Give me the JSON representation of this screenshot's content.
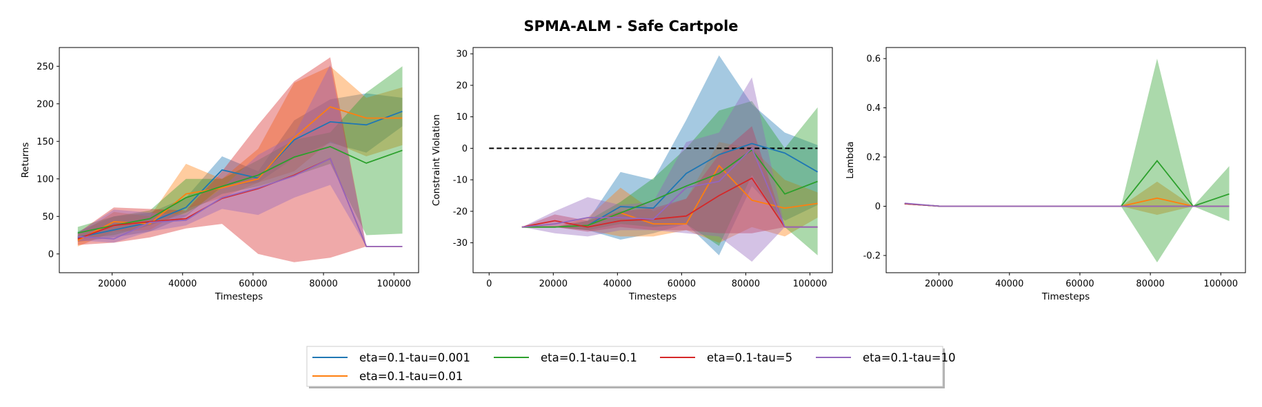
{
  "title": "SPMA-ALM - Safe Cartpole",
  "colors": {
    "eta=0.1-tau=0.001": "#1f77b4",
    "eta=0.1-tau=0.01": "#ff7f0e",
    "eta=0.1-tau=0.1": "#2ca02c",
    "eta=0.1-tau=5": "#d62728",
    "eta=0.1-tau=10": "#9467bd"
  },
  "legend": {
    "entries": [
      "eta=0.1-tau=0.001",
      "eta=0.1-tau=0.1",
      "eta=0.1-tau=5",
      "eta=0.1-tau=10",
      "eta=0.1-tau=0.01"
    ]
  },
  "chart_data": [
    {
      "type": "line",
      "xlabel": "Timesteps",
      "ylabel": "Returns",
      "xlim": [
        5000,
        107000
      ],
      "ylim": [
        -25,
        275
      ],
      "xticks": [
        20000,
        40000,
        60000,
        80000,
        100000
      ],
      "yticks": [
        0,
        50,
        100,
        150,
        200,
        250
      ],
      "x": [
        10240,
        20480,
        30720,
        40960,
        51200,
        61440,
        71680,
        81920,
        92160,
        102400
      ],
      "series": [
        {
          "name": "eta=0.1-tau=0.001",
          "values": [
            22,
            32,
            42,
            62,
            112,
            101,
            152,
            176,
            172,
            190
          ],
          "lower": [
            16,
            22,
            30,
            50,
            90,
            95,
            128,
            148,
            135,
            170
          ],
          "upper": [
            30,
            50,
            55,
            75,
            130,
            110,
            178,
            206,
            214,
            208
          ]
        },
        {
          "name": "eta=0.1-tau=0.01",
          "values": [
            18,
            43,
            40,
            80,
            88,
            100,
            155,
            196,
            181,
            181
          ],
          "lower": [
            10,
            30,
            32,
            60,
            75,
            95,
            110,
            150,
            130,
            145
          ],
          "upper": [
            25,
            56,
            50,
            120,
            100,
            140,
            228,
            250,
            208,
            222
          ]
        },
        {
          "name": "eta=0.1-tau=0.1",
          "values": [
            28,
            38,
            47,
            75,
            90,
            105,
            129,
            143,
            121,
            138
          ],
          "lower": [
            20,
            25,
            38,
            55,
            80,
            90,
            104,
            120,
            25,
            27
          ],
          "upper": [
            36,
            50,
            58,
            100,
            100,
            125,
            152,
            162,
            215,
            250
          ]
        },
        {
          "name": "eta=0.1-tau=5",
          "values": [
            20,
            38,
            43,
            47,
            74,
            87,
            105,
            127,
            10,
            10
          ],
          "lower": [
            12,
            15,
            22,
            34,
            40,
            0,
            -11,
            -5,
            10,
            10
          ],
          "upper": [
            28,
            62,
            60,
            58,
            110,
            172,
            230,
            262,
            10,
            10
          ]
        },
        {
          "name": "eta=0.1-tau=10",
          "values": [
            23,
            20,
            42,
            45,
            75,
            88,
            104,
            127,
            10,
            10
          ],
          "lower": [
            18,
            15,
            30,
            38,
            60,
            52,
            75,
            92,
            10,
            10
          ],
          "upper": [
            28,
            59,
            55,
            52,
            88,
            132,
            158,
            252,
            10,
            10
          ]
        }
      ]
    },
    {
      "type": "line",
      "xlabel": "Timesteps",
      "ylabel": "Constraint Violation",
      "xlim": [
        -5000,
        107000
      ],
      "ylim": [
        -39.5,
        32
      ],
      "xticks": [
        0,
        20000,
        40000,
        60000,
        80000,
        100000
      ],
      "yticks": [
        -30,
        -20,
        -10,
        0,
        10,
        20,
        30
      ],
      "threshold": {
        "y": 0,
        "xrange": [
          0,
          102400
        ],
        "color": "#000000",
        "dash": true
      },
      "x": [
        10240,
        20480,
        30720,
        40960,
        51200,
        61440,
        71680,
        81920,
        92160,
        102400
      ],
      "series": [
        {
          "name": "eta=0.1-tau=0.001",
          "values": [
            -25,
            -25,
            -24.5,
            -18.5,
            -19,
            -8,
            -2,
            1.5,
            -1.5,
            -7.5
          ],
          "lower": [
            -25,
            -25,
            -26,
            -29,
            -27,
            -24,
            -34,
            -12,
            -23,
            -18
          ],
          "upper": [
            -25,
            -25,
            -23,
            -7.5,
            -10,
            9,
            29.5,
            14,
            5,
            1
          ]
        },
        {
          "name": "eta=0.1-tau=0.01",
          "values": [
            -25,
            -25,
            -24.5,
            -20.5,
            -24,
            -24,
            -5.5,
            -16.5,
            -19,
            -17.5
          ],
          "lower": [
            -25,
            -25,
            -26,
            -28,
            -28,
            -26,
            -30,
            -25,
            -28,
            -22
          ],
          "upper": [
            -25,
            -25,
            -22,
            -12.5,
            -20,
            -16,
            2,
            0,
            -10,
            -14
          ]
        },
        {
          "name": "eta=0.1-tau=0.1",
          "values": [
            -25,
            -25,
            -24.5,
            -20.5,
            -16.5,
            -12,
            -8,
            -0.5,
            -14.5,
            -10.5
          ],
          "lower": [
            -25,
            -25,
            -26,
            -24,
            -25,
            -24,
            -31,
            -8.5,
            -25,
            -34
          ],
          "upper": [
            -25,
            -25,
            -23,
            -17,
            -9.5,
            0,
            12,
            15,
            0,
            13
          ]
        },
        {
          "name": "eta=0.1-tau=5",
          "values": [
            -25,
            -23,
            -25,
            -23,
            -22.5,
            -21.5,
            -15,
            -9.5,
            -25,
            -25
          ],
          "lower": [
            -25,
            -25,
            -26.5,
            -25,
            -26,
            -26,
            -27,
            -27,
            -25,
            -25
          ],
          "upper": [
            -25,
            -21,
            -23,
            -20,
            -19,
            -16,
            -2,
            7,
            -25,
            -25
          ]
        },
        {
          "name": "eta=0.1-tau=10",
          "values": [
            -25,
            -24,
            -22,
            -22,
            -22.5,
            -12.5,
            -10.5,
            0,
            -25,
            -25
          ],
          "lower": [
            -25,
            -27,
            -28,
            -26,
            -26,
            -27,
            -28,
            -36,
            -25,
            -25
          ],
          "upper": [
            -25,
            -20,
            -15.5,
            -18,
            -17,
            2,
            5,
            22.5,
            -25,
            -25
          ]
        }
      ]
    },
    {
      "type": "line",
      "xlabel": "Timesteps",
      "ylabel": "Lambda",
      "xlim": [
        5000,
        107000
      ],
      "ylim": [
        -0.27,
        0.645
      ],
      "xticks": [
        20000,
        40000,
        60000,
        80000,
        100000
      ],
      "yticks": [
        -0.2,
        0.0,
        0.2,
        0.4,
        0.6
      ],
      "x": [
        10240,
        20480,
        30720,
        40960,
        51200,
        61440,
        71680,
        81920,
        92160,
        102400
      ],
      "series": [
        {
          "name": "eta=0.1-tau=0.001",
          "values": [
            0.01,
            0,
            0,
            0,
            0,
            0,
            0,
            0,
            0,
            0
          ],
          "lower": [
            0.01,
            0,
            0,
            0,
            0,
            0,
            0,
            0,
            0,
            0
          ],
          "upper": [
            0.01,
            0,
            0,
            0,
            0,
            0,
            0,
            0,
            0,
            0
          ]
        },
        {
          "name": "eta=0.1-tau=0.01",
          "values": [
            0.01,
            0,
            0,
            0,
            0,
            0,
            0,
            0.033,
            0,
            0
          ],
          "lower": [
            0.01,
            0,
            0,
            0,
            0,
            0,
            0,
            -0.035,
            0,
            0
          ],
          "upper": [
            0.01,
            0,
            0,
            0,
            0,
            0,
            0,
            0.1,
            0,
            0
          ]
        },
        {
          "name": "eta=0.1-tau=0.1",
          "values": [
            0.01,
            0,
            0,
            0,
            0,
            0,
            0,
            0.185,
            0,
            0.05
          ],
          "lower": [
            0.01,
            0,
            0,
            0,
            0,
            0,
            0,
            -0.228,
            0,
            -0.06
          ],
          "upper": [
            0.01,
            0,
            0,
            0,
            0,
            0,
            0,
            0.6,
            0,
            0.163
          ]
        },
        {
          "name": "eta=0.1-tau=5",
          "values": [
            0.01,
            0,
            0,
            0,
            0,
            0,
            0,
            0,
            0,
            0
          ],
          "lower": [
            0.01,
            0,
            0,
            0,
            0,
            0,
            0,
            0,
            0,
            0
          ],
          "upper": [
            0.01,
            0,
            0,
            0,
            0,
            0,
            0,
            0,
            0,
            0
          ]
        },
        {
          "name": "eta=0.1-tau=10",
          "values": [
            0.012,
            0,
            0,
            0,
            0,
            0,
            0,
            0,
            0,
            0
          ],
          "lower": [
            0.012,
            0,
            0,
            0,
            0,
            0,
            0,
            0,
            0,
            0
          ],
          "upper": [
            0.012,
            0,
            0,
            0,
            0,
            0,
            0,
            0,
            0,
            0
          ]
        }
      ]
    }
  ]
}
